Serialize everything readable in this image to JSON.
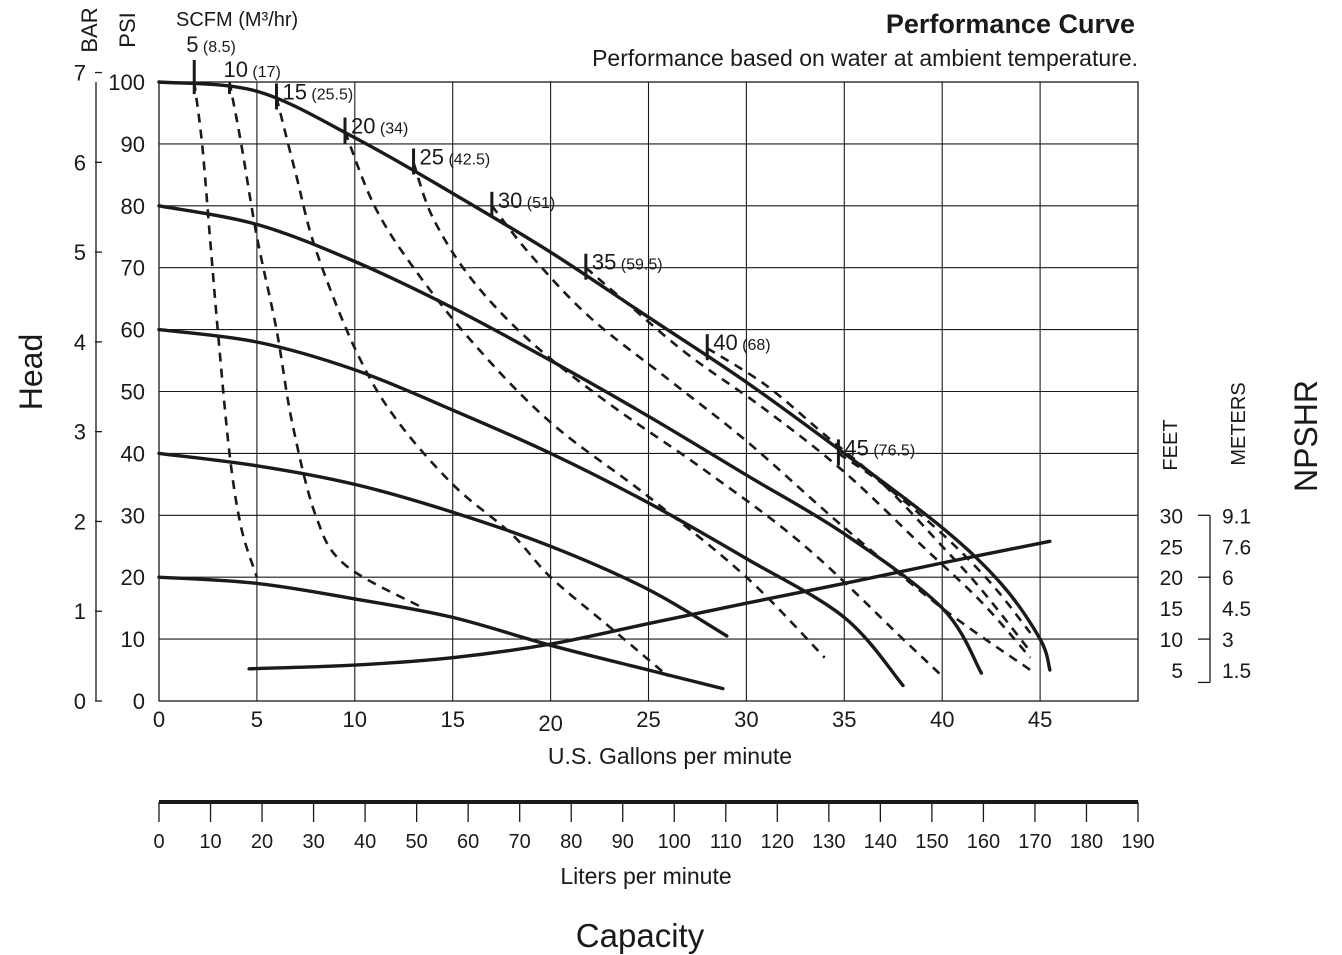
{
  "chart_data": {
    "type": "line",
    "title": "Performance Curve",
    "subtitle": "Performance based on water at ambient temperature.",
    "side_label_left": "Head",
    "side_label_right": "NPSHR",
    "bottom_label": "Capacity",
    "x_primary": {
      "label": "U.S. Gallons per minute",
      "range": [
        0,
        50
      ],
      "ticks": [
        {
          "v": 0,
          "t": "0"
        },
        {
          "v": 5,
          "t": "5"
        },
        {
          "v": 10,
          "t": "10"
        },
        {
          "v": 15,
          "t": "15"
        },
        {
          "v": 20,
          "t": "20"
        },
        {
          "v": 25,
          "t": "25"
        },
        {
          "v": 30,
          "t": "30"
        },
        {
          "v": 35,
          "t": "35"
        },
        {
          "v": 40,
          "t": "40"
        },
        {
          "v": 45,
          "t": "45"
        }
      ]
    },
    "x_secondary": {
      "label": "Liters per minute",
      "range": [
        0,
        190
      ],
      "ticks": [
        "0",
        "10",
        "20",
        "30",
        "40",
        "50",
        "60",
        "70",
        "80",
        "90",
        "100",
        "110",
        "120",
        "130",
        "140",
        "150",
        "160",
        "170",
        "180",
        "190"
      ]
    },
    "y_psi": {
      "label": "PSI",
      "range": [
        0,
        100
      ],
      "ticks": [
        "0",
        "10",
        "20",
        "30",
        "40",
        "50",
        "60",
        "70",
        "80",
        "90",
        "100"
      ]
    },
    "y_bar": {
      "label": "BAR",
      "range": [
        0,
        7
      ],
      "ticks": [
        "0",
        "1",
        "2",
        "3",
        "4",
        "5",
        "6",
        "7"
      ]
    },
    "npshr_axis": {
      "feet_label": "FEET",
      "meters_label": "METERS",
      "feet": [
        "30",
        "25",
        "20",
        "15",
        "10",
        "5"
      ],
      "meters": [
        "9.1",
        "7.6",
        "6",
        "4.5",
        "3",
        "1.5"
      ]
    },
    "air_label": "SCFM (M³/hr)",
    "air_pressure_curves": [
      {
        "psi": 100,
        "points": [
          [
            0,
            100
          ],
          [
            5,
            98.5
          ],
          [
            10,
            91
          ],
          [
            15,
            82
          ],
          [
            20,
            72.5
          ],
          [
            25,
            62
          ],
          [
            30,
            51.5
          ],
          [
            35,
            40
          ],
          [
            40,
            28
          ],
          [
            43,
            19
          ],
          [
            45,
            10
          ],
          [
            45.5,
            5
          ]
        ]
      },
      {
        "psi": 80,
        "points": [
          [
            0,
            80
          ],
          [
            5,
            77
          ],
          [
            10,
            71
          ],
          [
            15,
            63.5
          ],
          [
            20,
            55
          ],
          [
            25,
            46
          ],
          [
            30,
            36.5
          ],
          [
            35,
            27
          ],
          [
            40,
            15
          ],
          [
            42,
            4.5
          ]
        ]
      },
      {
        "psi": 60,
        "points": [
          [
            0,
            60
          ],
          [
            5,
            58
          ],
          [
            10,
            53.5
          ],
          [
            15,
            47
          ],
          [
            20,
            40
          ],
          [
            25,
            32
          ],
          [
            30,
            23
          ],
          [
            35,
            13.5
          ],
          [
            38,
            2.5
          ]
        ]
      },
      {
        "psi": 40,
        "points": [
          [
            0,
            40
          ],
          [
            5,
            38
          ],
          [
            10,
            35
          ],
          [
            15,
            30.5
          ],
          [
            20,
            25
          ],
          [
            25,
            18
          ],
          [
            29,
            10.5
          ]
        ]
      },
      {
        "psi": 20,
        "points": [
          [
            0,
            20
          ],
          [
            5,
            19
          ],
          [
            10,
            16.5
          ],
          [
            15,
            13.5
          ],
          [
            20,
            9
          ],
          [
            25,
            5
          ],
          [
            28.8,
            2
          ]
        ]
      }
    ],
    "air_consumption_curves": [
      {
        "scfm": "5",
        "m3hr": "(8.5)",
        "points": [
          [
            1.8,
            100
          ],
          [
            2.2,
            90
          ],
          [
            2.6,
            75
          ],
          [
            3.0,
            60
          ],
          [
            3.6,
            40
          ],
          [
            4.2,
            28
          ],
          [
            5.0,
            20
          ]
        ]
      },
      {
        "scfm": "10",
        "m3hr": "(17)",
        "points": [
          [
            3.6,
            100
          ],
          [
            4.2,
            90
          ],
          [
            5.0,
            75
          ],
          [
            6.0,
            60
          ],
          [
            6.8,
            45
          ],
          [
            8.0,
            30
          ],
          [
            9.5,
            22
          ],
          [
            13.5,
            15
          ]
        ]
      },
      {
        "scfm": "15",
        "m3hr": "(25.5)",
        "points": [
          [
            6.0,
            97.5
          ],
          [
            7.0,
            85
          ],
          [
            8.0,
            73
          ],
          [
            10.0,
            57
          ],
          [
            12.0,
            46
          ],
          [
            15.0,
            35
          ],
          [
            18.0,
            27
          ],
          [
            20.0,
            20
          ],
          [
            23.0,
            12
          ],
          [
            26.0,
            4
          ]
        ]
      },
      {
        "scfm": "20",
        "m3hr": "(34)",
        "points": [
          [
            9.5,
            92
          ],
          [
            11.0,
            80
          ],
          [
            13.0,
            70
          ],
          [
            16.0,
            58
          ],
          [
            20.0,
            45
          ],
          [
            25.0,
            33
          ],
          [
            30.0,
            20
          ],
          [
            34.0,
            7
          ]
        ]
      },
      {
        "scfm": "25",
        "m3hr": "(42.5)",
        "points": [
          [
            13.0,
            87
          ],
          [
            14.0,
            78
          ],
          [
            16.0,
            68
          ],
          [
            19.0,
            58
          ],
          [
            23.0,
            48
          ],
          [
            28.0,
            37
          ],
          [
            33.0,
            25
          ],
          [
            38.0,
            10
          ],
          [
            40.0,
            4
          ]
        ]
      },
      {
        "scfm": "30",
        "m3hr": "(51)",
        "points": [
          [
            17.0,
            80
          ],
          [
            19.0,
            72
          ],
          [
            22.0,
            62
          ],
          [
            26.0,
            52
          ],
          [
            30.0,
            42
          ],
          [
            35.0,
            28
          ],
          [
            40.0,
            15
          ],
          [
            44.5,
            5
          ]
        ]
      },
      {
        "scfm": "35",
        "m3hr": "(59.5)",
        "points": [
          [
            21.8,
            70
          ],
          [
            24.0,
            64
          ],
          [
            27.0,
            56
          ],
          [
            31.0,
            47
          ],
          [
            35.0,
            37
          ],
          [
            39.0,
            25
          ],
          [
            42.0,
            16
          ],
          [
            44.5,
            7
          ]
        ]
      },
      {
        "scfm": "40",
        "m3hr": "(68)",
        "points": [
          [
            28.0,
            57
          ],
          [
            31.0,
            51
          ],
          [
            34.0,
            43
          ],
          [
            37.0,
            35
          ],
          [
            40.0,
            25
          ],
          [
            42.0,
            18
          ],
          [
            44.5,
            8
          ]
        ]
      },
      {
        "scfm": "45",
        "m3hr": "(76.5)",
        "points": [
          [
            34.7,
            40
          ],
          [
            37.0,
            35
          ],
          [
            40.0,
            27
          ],
          [
            42.5,
            19
          ],
          [
            44.5,
            11
          ]
        ]
      }
    ],
    "npshr_curve": {
      "points": [
        [
          4.6,
          5.2
        ],
        [
          10,
          5.8
        ],
        [
          15,
          7
        ],
        [
          20,
          9.2
        ],
        [
          25,
          12.5
        ],
        [
          30,
          15.8
        ],
        [
          35,
          19
        ],
        [
          40,
          22.3
        ],
        [
          45.5,
          25.8
        ]
      ]
    }
  }
}
